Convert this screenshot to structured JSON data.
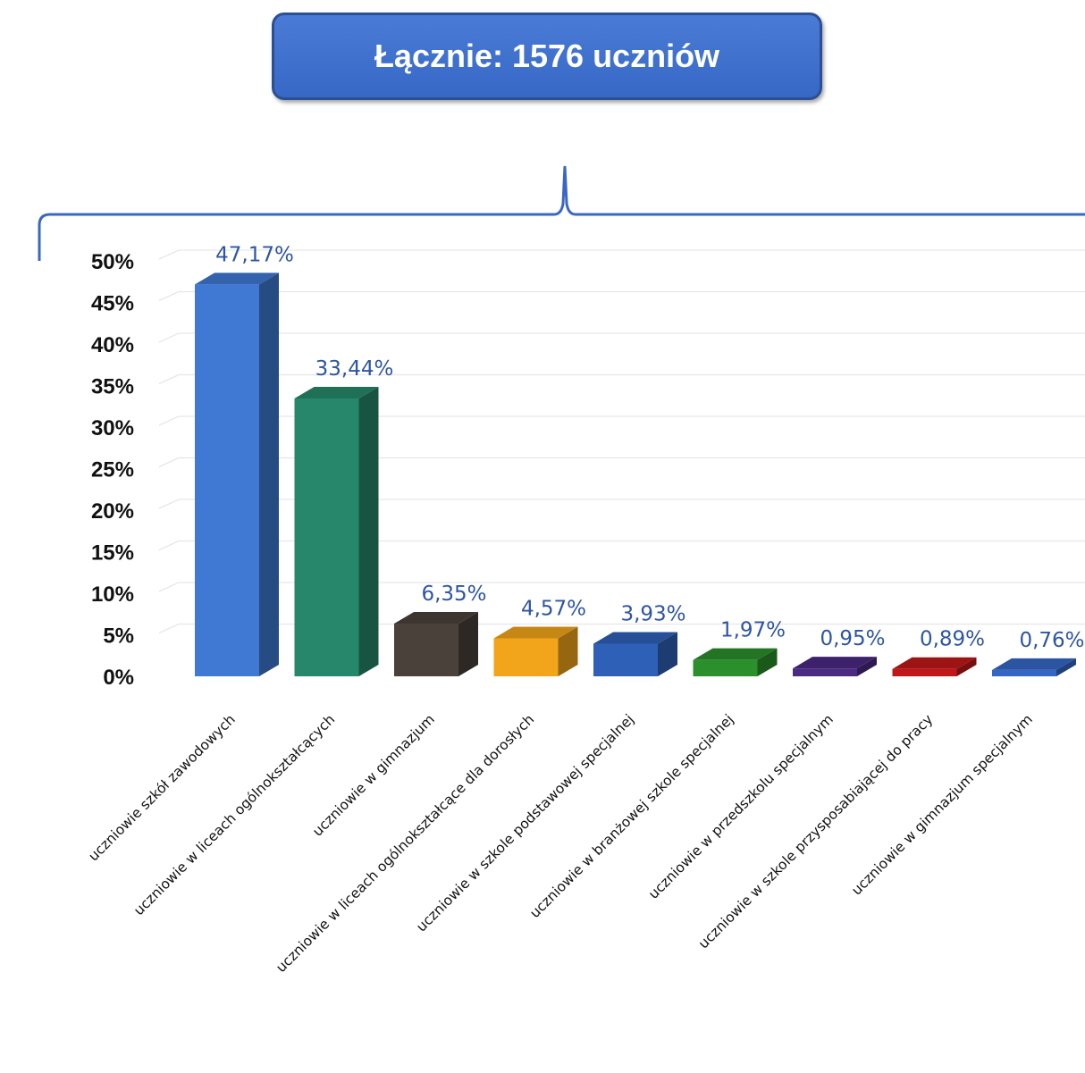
{
  "header": {
    "total_label": "Łącznie: 1576 uczniów"
  },
  "chart_data": {
    "type": "bar",
    "title": "",
    "xlabel": "",
    "ylabel": "",
    "ylim": [
      0,
      50
    ],
    "yticks": [
      "0%",
      "5%",
      "10%",
      "15%",
      "20%",
      "25%",
      "30%",
      "35%",
      "40%",
      "45%",
      "50%"
    ],
    "grid": true,
    "style": "3d-columns",
    "categories": [
      "uczniowie szkół zawodowych",
      "uczniowie w liceach ogólnokształcących",
      "uczniowie w gimnazjum",
      "uczniowie w liceach ogólnokształcące dla dorosłych",
      "uczniowie w szkole podstawowej specjalnej",
      "uczniowie w branżowej szkole specjalnej",
      "uczniowie w przedszkolu specjalnym",
      "uczniowie w szkole przysposabiającej do pracy",
      "uczniowie w gimnazjum specjalnym"
    ],
    "values": [
      47.17,
      33.44,
      6.35,
      4.57,
      3.93,
      1.97,
      0.95,
      0.89,
      0.76
    ],
    "value_labels": [
      "47,17%",
      "33,44%",
      "6,35%",
      "4,57%",
      "3,93%",
      "1,97%",
      "0,95%",
      "0,89%",
      "0,76%"
    ],
    "colors": [
      "#3f79d4",
      "#27876a",
      "#4a413b",
      "#f2a51a",
      "#2f60b8",
      "#2b8f2b",
      "#4a2a82",
      "#c01818",
      "#3466c6"
    ],
    "label_color": "#2e55a3"
  }
}
